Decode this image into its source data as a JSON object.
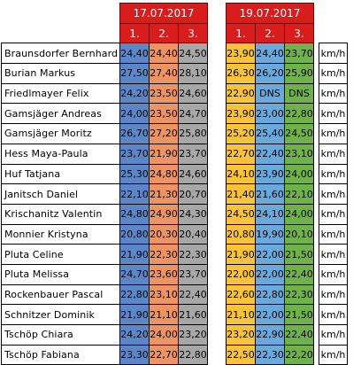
{
  "dates": [
    "17.07.2017",
    "19.07.2017"
  ],
  "rounds": [
    "1.",
    "2.",
    "3."
  ],
  "unit": "km/h",
  "colors": {
    "header": "#d91c1c",
    "day1": [
      "#5b87c9",
      "#ee9463",
      "#a7a7a7"
    ],
    "day2": [
      "#f8c23b",
      "#6aa9dc",
      "#6fb24a"
    ]
  },
  "rows": [
    {
      "name": "Braunsdorfer Bernhard",
      "day1": [
        "24,40",
        "24,40",
        "24,50"
      ],
      "day2": [
        "23,90",
        "24,40",
        "23,70"
      ]
    },
    {
      "name": "Burian Markus",
      "day1": [
        "27,50",
        "27,40",
        "28,10"
      ],
      "day2": [
        "26,30",
        "26,20",
        "25,90"
      ]
    },
    {
      "name": "Friedlmayer Felix",
      "day1": [
        "24,20",
        "23,50",
        "24,60"
      ],
      "day2": [
        "22,90",
        "DNS",
        "DNS"
      ]
    },
    {
      "name": "Gamsjäger Andreas",
      "day1": [
        "24,00",
        "23,50",
        "24,70"
      ],
      "day2": [
        "23,90",
        "23,00",
        "22,80"
      ]
    },
    {
      "name": "Gamsjäger Moritz",
      "day1": [
        "26,70",
        "27,20",
        "25,80"
      ],
      "day2": [
        "25,20",
        "25,40",
        "24,50"
      ]
    },
    {
      "name": "Hess Maya-Paula",
      "day1": [
        "23,70",
        "21,90",
        "23,70"
      ],
      "day2": [
        "22,70",
        "22,40",
        "23,10"
      ]
    },
    {
      "name": "Huf Tatjana",
      "day1": [
        "25,30",
        "24,80",
        "24,60"
      ],
      "day2": [
        "24,10",
        "23,90",
        "24,00"
      ]
    },
    {
      "name": "Janitsch Daniel",
      "day1": [
        "22,10",
        "21,30",
        "20,70"
      ],
      "day2": [
        "21,40",
        "21,60",
        "22,10"
      ]
    },
    {
      "name": "Krischanitz Valentin",
      "day1": [
        "24,80",
        "24,90",
        "24,30"
      ],
      "day2": [
        "24,50",
        "24,10",
        "24,00"
      ]
    },
    {
      "name": "Monnier Kristyna",
      "day1": [
        "20,80",
        "20,30",
        "20,40"
      ],
      "day2": [
        "20,80",
        "19,90",
        "20,10"
      ]
    },
    {
      "name": "Pluta Celine",
      "day1": [
        "21,90",
        "22,30",
        "22,30"
      ],
      "day2": [
        "21,90",
        "22,00",
        "21,50"
      ]
    },
    {
      "name": "Pluta Melissa",
      "day1": [
        "24,70",
        "23,60",
        "23,70"
      ],
      "day2": [
        "22,00",
        "22,00",
        "22,40"
      ]
    },
    {
      "name": "Rockenbauer Pascal",
      "day1": [
        "22,80",
        "23,10",
        "22,40"
      ],
      "day2": [
        "22,60",
        "22,80",
        "22,30"
      ]
    },
    {
      "name": "Schnitzer Dominik",
      "day1": [
        "21,90",
        "21,10",
        "21,60"
      ],
      "day2": [
        "21,10",
        "22,00",
        "21,50"
      ]
    },
    {
      "name": "Tschöp Chiara",
      "day1": [
        "24,20",
        "24,00",
        "23,20"
      ],
      "day2": [
        "23,20",
        "22,90",
        "22,40"
      ]
    },
    {
      "name": "Tschöp Fabiana",
      "day1": [
        "23,30",
        "22,70",
        "22,80"
      ],
      "day2": [
        "22,50",
        "22,30",
        "22,20"
      ]
    }
  ]
}
